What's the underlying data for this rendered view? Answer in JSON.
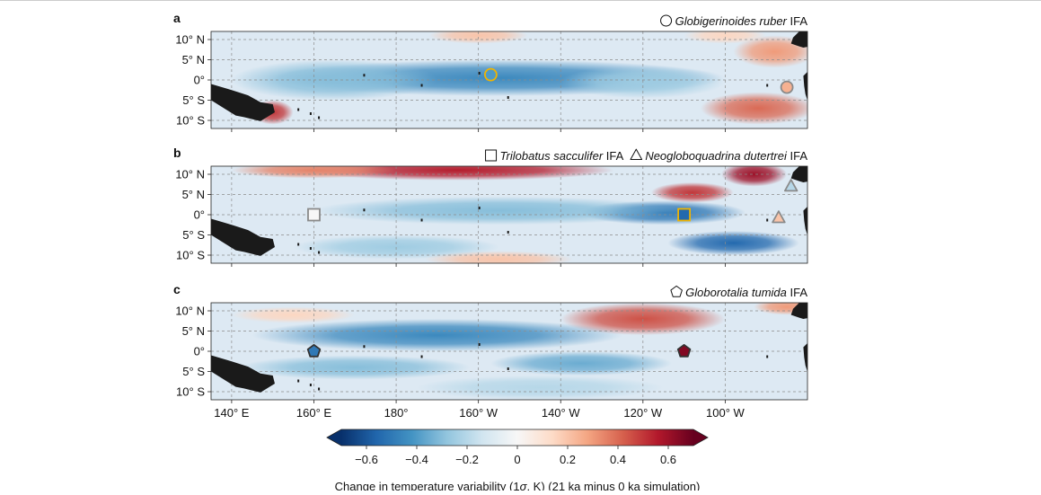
{
  "chart_data": [
    {
      "type": "heatmap",
      "panel": "a",
      "legend": {
        "marker": "circle",
        "species": "Globigerinoides ruber",
        "suffix": " IFA"
      },
      "xlim": [
        135,
        280
      ],
      "ylim": [
        -12,
        12
      ],
      "y_ticks": [
        {
          "v": 10,
          "label": "10° N"
        },
        {
          "v": 5,
          "label": "5° N"
        },
        {
          "v": 0,
          "label": "0°"
        },
        {
          "v": -5,
          "label": "5° S"
        },
        {
          "v": -10,
          "label": "10° S"
        }
      ],
      "markers": [
        {
          "shape": "circle",
          "lon": 203,
          "lat": 1.3,
          "value": -0.4,
          "edge": "#f0b400"
        },
        {
          "shape": "circle",
          "lon": 275,
          "lat": -1.8,
          "value": 0.25,
          "edge": "#8a8a8a"
        }
      ]
    },
    {
      "type": "heatmap",
      "panel": "b",
      "legend": [
        {
          "marker": "square",
          "species": "Trilobatus sacculifer",
          "suffix": " IFA"
        },
        {
          "marker": "triangle",
          "species": "Neogloboquadrina dutertrei",
          "suffix": " IFA"
        }
      ],
      "xlim": [
        135,
        280
      ],
      "ylim": [
        -12,
        12
      ],
      "y_ticks": [
        {
          "v": 10,
          "label": "10° N"
        },
        {
          "v": 5,
          "label": "5° N"
        },
        {
          "v": 0,
          "label": "0°"
        },
        {
          "v": -5,
          "label": "5° S"
        },
        {
          "v": -10,
          "label": "10° S"
        }
      ],
      "markers": [
        {
          "shape": "square",
          "lon": 160,
          "lat": 0,
          "value": 0.0,
          "edge": "#8a8a8a"
        },
        {
          "shape": "square",
          "lon": 250,
          "lat": 0,
          "value": -0.55,
          "edge": "#f0b400"
        },
        {
          "shape": "triangle",
          "lon": 276,
          "lat": 7,
          "value": -0.2,
          "edge": "#8a8a8a"
        },
        {
          "shape": "triangle",
          "lon": 273,
          "lat": -0.8,
          "value": 0.2,
          "edge": "#8a8a8a"
        }
      ]
    },
    {
      "type": "heatmap",
      "panel": "c",
      "legend": {
        "marker": "pentagon",
        "species": "Globorotalia tumida",
        "suffix": " IFA"
      },
      "xlim": [
        135,
        280
      ],
      "ylim": [
        -12,
        12
      ],
      "y_ticks": [
        {
          "v": 10,
          "label": "10° N"
        },
        {
          "v": 5,
          "label": "5° N"
        },
        {
          "v": 0,
          "label": "0°"
        },
        {
          "v": -5,
          "label": "5° S"
        },
        {
          "v": -10,
          "label": "10° S"
        }
      ],
      "x_ticks": [
        {
          "v": 140,
          "label": "140° E"
        },
        {
          "v": 160,
          "label": "160° E"
        },
        {
          "v": 180,
          "label": "180°"
        },
        {
          "v": 200,
          "label": "160° W"
        },
        {
          "v": 220,
          "label": "140° W"
        },
        {
          "v": 240,
          "label": "120° W"
        },
        {
          "v": 260,
          "label": "100° W"
        }
      ],
      "markers": [
        {
          "shape": "pentagon",
          "lon": 160,
          "lat": 0,
          "value": -0.5,
          "edge": "#333333"
        },
        {
          "shape": "pentagon",
          "lon": 250,
          "lat": 0,
          "value": 0.65,
          "edge": "#333333"
        }
      ]
    }
  ],
  "colorbar": {
    "range": [
      -0.7,
      0.7
    ],
    "ticks": [
      {
        "v": -0.6,
        "label": "−0.6"
      },
      {
        "v": -0.4,
        "label": "−0.4"
      },
      {
        "v": -0.2,
        "label": "−0.2"
      },
      {
        "v": 0,
        "label": "0"
      },
      {
        "v": 0.2,
        "label": "0.2"
      },
      {
        "v": 0.4,
        "label": "0.4"
      },
      {
        "v": 0.6,
        "label": "0.6"
      }
    ],
    "label_pre": "Change in temperature variability (1",
    "label_sym": "σ",
    "label_post": ", K) (21 ka minus 0 ka simulation)",
    "colors": [
      "#08306b",
      "#2166ac",
      "#4393c3",
      "#92c5de",
      "#d1e5f0",
      "#f7f7f7",
      "#fddbc7",
      "#f4a582",
      "#d6604d",
      "#b2182b",
      "#67001f"
    ]
  },
  "land_color": "#1a1a1a"
}
